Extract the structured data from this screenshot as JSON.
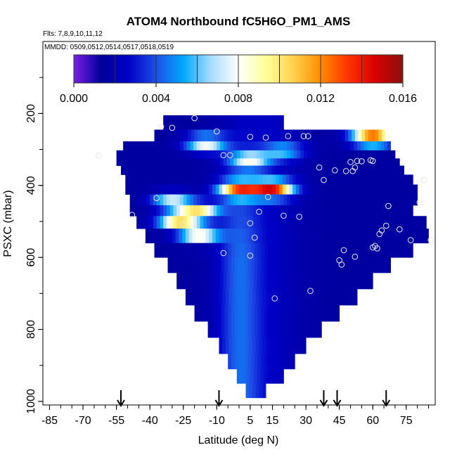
{
  "chart_data": {
    "type": "heatmap",
    "title": "ATOM4 Northbound fC5H6O_PM1_AMS",
    "flights_note": "Flts: 7,8,9,10,11,12",
    "dates_note": "MMDD: 0509,0512,0514,0517,0518,0519",
    "xlabel": "Latitude (deg N)",
    "ylabel": "PSXC (mbar)",
    "xlim": [
      -88,
      88
    ],
    "ylim": [
      1010,
      0
    ],
    "x_tick_labels": [
      "-85",
      "-70",
      "-55",
      "-40",
      "-25",
      "-10",
      "5",
      "15",
      "30",
      "45",
      "60",
      "75"
    ],
    "x_tick_values": [
      -85,
      -70,
      -55,
      -40,
      -25,
      -10,
      5,
      15,
      30,
      45,
      60,
      75
    ],
    "x_minor_step": 5,
    "y_tick_labels": [
      "200",
      "400",
      "600",
      "800",
      "1000"
    ],
    "y_tick_values": [
      200,
      400,
      600,
      800,
      1000
    ],
    "colorbar": {
      "min": 0.0,
      "max": 0.016,
      "tick_labels": [
        "0.000",
        "0.004",
        "0.008",
        "0.012",
        "0.016"
      ],
      "tick_values": [
        0.0,
        0.004,
        0.008,
        0.012,
        0.016
      ],
      "color_stops": [
        "#7A1FE6",
        "#00009A",
        "#0000C8",
        "#1E4FE6",
        "#00A8FF",
        "#A8DCFF",
        "#FFFFFF",
        "#FFFF99",
        "#FFD24D",
        "#FF8C00",
        "#FF3300",
        "#D80000",
        "#8B1010"
      ]
    },
    "profile_arrows_lat": [
      -53,
      -9,
      38,
      44,
      66
    ],
    "pressure_levels": [
      {
        "p": 225,
        "lat_min": -34,
        "lat_max": 20
      },
      {
        "p": 265,
        "lat_min": -38,
        "lat_max": 67
      },
      {
        "p": 290,
        "lat_min": -52,
        "lat_max": 68
      },
      {
        "p": 315,
        "lat_min": -55,
        "lat_max": 70
      },
      {
        "p": 335,
        "lat_min": -55,
        "lat_max": 72
      },
      {
        "p": 355,
        "lat_min": -53,
        "lat_max": 74
      },
      {
        "p": 385,
        "lat_min": -51,
        "lat_max": 78
      },
      {
        "p": 410,
        "lat_min": -51,
        "lat_max": 80
      },
      {
        "p": 440,
        "lat_min": -49,
        "lat_max": 80
      },
      {
        "p": 470,
        "lat_min": -49,
        "lat_max": 78
      },
      {
        "p": 500,
        "lat_min": -46,
        "lat_max": 84
      },
      {
        "p": 540,
        "lat_min": -42,
        "lat_max": 85
      },
      {
        "p": 580,
        "lat_min": -38,
        "lat_max": 78
      },
      {
        "p": 620,
        "lat_min": -32,
        "lat_max": 68
      },
      {
        "p": 665,
        "lat_min": -28,
        "lat_max": 60
      },
      {
        "p": 710,
        "lat_min": -24,
        "lat_max": 53
      },
      {
        "p": 755,
        "lat_min": -20,
        "lat_max": 45
      },
      {
        "p": 800,
        "lat_min": -14,
        "lat_max": 37
      },
      {
        "p": 845,
        "lat_min": -9,
        "lat_max": 30
      },
      {
        "p": 890,
        "lat_min": -5,
        "lat_max": 25
      },
      {
        "p": 930,
        "lat_min": -1,
        "lat_max": 20
      },
      {
        "p": 970,
        "lat_min": 3,
        "lat_max": 12
      }
    ],
    "hotspots": [
      {
        "lat": -15,
        "p": 285,
        "value": 0.0085
      },
      {
        "lat": 60,
        "p": 268,
        "value": 0.013
      },
      {
        "lat": 0,
        "p": 412,
        "value": 0.0115
      },
      {
        "lat": 15,
        "p": 410,
        "value": 0.0135
      },
      {
        "lat": -18,
        "p": 472,
        "value": 0.0095
      },
      {
        "lat": -27,
        "p": 495,
        "value": 0.0105
      },
      {
        "lat": -18,
        "p": 540,
        "value": 0.0085
      },
      {
        "lat": -30,
        "p": 440,
        "value": 0.0075
      },
      {
        "lat": 5,
        "p": 330,
        "value": 0.0075
      },
      {
        "lat": 20,
        "p": 305,
        "value": 0.006
      }
    ],
    "sample_points": [
      {
        "lat": -20,
        "p": 213
      },
      {
        "lat": -35,
        "p": 237
      },
      {
        "lat": -30,
        "p": 240
      },
      {
        "lat": -10,
        "p": 250
      },
      {
        "lat": 5,
        "p": 265
      },
      {
        "lat": 12,
        "p": 267
      },
      {
        "lat": 22,
        "p": 263
      },
      {
        "lat": 29,
        "p": 263
      },
      {
        "lat": 31,
        "p": 263
      },
      {
        "lat": -63,
        "p": 317
      },
      {
        "lat": -7,
        "p": 316
      },
      {
        "lat": -4,
        "p": 316
      },
      {
        "lat": 36,
        "p": 350
      },
      {
        "lat": 43,
        "p": 358
      },
      {
        "lat": 50,
        "p": 335
      },
      {
        "lat": 52,
        "p": 350
      },
      {
        "lat": 53,
        "p": 332
      },
      {
        "lat": 55,
        "p": 333
      },
      {
        "lat": 59,
        "p": 330
      },
      {
        "lat": 60,
        "p": 332
      },
      {
        "lat": 48,
        "p": 360
      },
      {
        "lat": 51,
        "p": 360
      },
      {
        "lat": 38,
        "p": 385
      },
      {
        "lat": 83,
        "p": 385
      },
      {
        "lat": 13,
        "p": 432
      },
      {
        "lat": -37,
        "p": 435
      },
      {
        "lat": 67,
        "p": 457
      },
      {
        "lat": -48,
        "p": 482
      },
      {
        "lat": 9,
        "p": 473
      },
      {
        "lat": 20,
        "p": 484
      },
      {
        "lat": 27,
        "p": 487
      },
      {
        "lat": 81,
        "p": 447
      },
      {
        "lat": 5,
        "p": 505
      },
      {
        "lat": 66,
        "p": 512
      },
      {
        "lat": -25,
        "p": 508
      },
      {
        "lat": 72,
        "p": 522
      },
      {
        "lat": 64,
        "p": 525
      },
      {
        "lat": 63,
        "p": 535
      },
      {
        "lat": 7,
        "p": 545
      },
      {
        "lat": 77,
        "p": 552
      },
      {
        "lat": 86,
        "p": 552
      },
      {
        "lat": 61,
        "p": 568
      },
      {
        "lat": 60,
        "p": 572
      },
      {
        "lat": 62,
        "p": 575
      },
      {
        "lat": 47,
        "p": 580
      },
      {
        "lat": 52,
        "p": 598
      },
      {
        "lat": 45,
        "p": 608
      },
      {
        "lat": -7,
        "p": 588
      },
      {
        "lat": 5,
        "p": 595
      },
      {
        "lat": 46,
        "p": 620
      },
      {
        "lat": 32,
        "p": 693
      },
      {
        "lat": 16,
        "p": 714
      }
    ]
  }
}
